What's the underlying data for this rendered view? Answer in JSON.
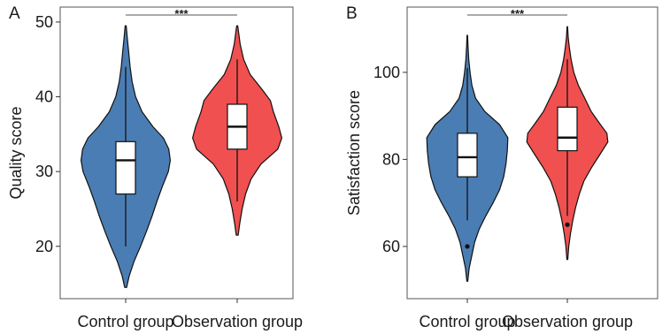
{
  "chart_data": [
    {
      "panel_label": "A",
      "type": "violin",
      "ylabel": "Quality score",
      "xlabel": "",
      "ylim": [
        13,
        52
      ],
      "yticks": [
        20,
        30,
        40,
        50
      ],
      "grid": false,
      "significance": "***",
      "categories": [
        "Control group",
        "Observation group"
      ],
      "groups": [
        {
          "name": "Control group",
          "color": "#4a7db3",
          "box": {
            "whisker_low": 20,
            "q1": 27,
            "median": 31.5,
            "q3": 34,
            "whisker_high": 44
          },
          "outliers": [],
          "density": [
            [
              14.5,
              0.02
            ],
            [
              16,
              0.07
            ],
            [
              18,
              0.17
            ],
            [
              20,
              0.3
            ],
            [
              22,
              0.42
            ],
            [
              24,
              0.53
            ],
            [
              26,
              0.63
            ],
            [
              28,
              0.74
            ],
            [
              30,
              0.86
            ],
            [
              31.5,
              0.9
            ],
            [
              33,
              0.87
            ],
            [
              34.5,
              0.76
            ],
            [
              36,
              0.55
            ],
            [
              38,
              0.33
            ],
            [
              40,
              0.2
            ],
            [
              42,
              0.13
            ],
            [
              44,
              0.09
            ],
            [
              46,
              0.06
            ],
            [
              48,
              0.03
            ],
            [
              49.5,
              0.01
            ]
          ]
        },
        {
          "name": "Observation group",
          "color": "#f0504f",
          "box": {
            "whisker_low": 26,
            "q1": 33,
            "median": 36,
            "q3": 39,
            "whisker_high": 45
          },
          "outliers": [],
          "density": [
            [
              21.5,
              0.02
            ],
            [
              23,
              0.05
            ],
            [
              25,
              0.1
            ],
            [
              27,
              0.17
            ],
            [
              29,
              0.28
            ],
            [
              31,
              0.48
            ],
            [
              33,
              0.82
            ],
            [
              34.5,
              0.9
            ],
            [
              36,
              0.84
            ],
            [
              38,
              0.73
            ],
            [
              39.5,
              0.67
            ],
            [
              41,
              0.5
            ],
            [
              43,
              0.26
            ],
            [
              45,
              0.13
            ],
            [
              47,
              0.06
            ],
            [
              48.5,
              0.03
            ],
            [
              49.5,
              0.01
            ]
          ]
        }
      ]
    },
    {
      "panel_label": "B",
      "type": "violin",
      "ylabel": "Satisfaction score",
      "xlabel": "",
      "ylim": [
        48,
        115
      ],
      "yticks": [
        60,
        80,
        100
      ],
      "grid": false,
      "significance": "***",
      "categories": [
        "Control group",
        "Observation group"
      ],
      "groups": [
        {
          "name": "Control group",
          "color": "#4a7db3",
          "box": {
            "whisker_low": 66,
            "q1": 76,
            "median": 80.5,
            "q3": 86,
            "whisker_high": 101
          },
          "outliers": [
            60
          ],
          "density": [
            [
              52,
              0.01
            ],
            [
              55,
              0.04
            ],
            [
              58,
              0.1
            ],
            [
              61,
              0.16
            ],
            [
              64,
              0.26
            ],
            [
              67,
              0.4
            ],
            [
              70,
              0.56
            ],
            [
              73,
              0.7
            ],
            [
              76,
              0.79
            ],
            [
              79,
              0.84
            ],
            [
              82,
              0.87
            ],
            [
              85,
              0.88
            ],
            [
              88,
              0.7
            ],
            [
              91,
              0.38
            ],
            [
              94,
              0.18
            ],
            [
              97,
              0.1
            ],
            [
              100,
              0.06
            ],
            [
              103,
              0.03
            ],
            [
              106,
              0.015
            ],
            [
              108.5,
              0.005
            ]
          ]
        },
        {
          "name": "Observation group",
          "color": "#f0504f",
          "box": {
            "whisker_low": 67,
            "q1": 82,
            "median": 85,
            "q3": 92,
            "whisker_high": 103
          },
          "outliers": [
            65
          ],
          "density": [
            [
              57,
              0.01
            ],
            [
              60,
              0.03
            ],
            [
              63,
              0.07
            ],
            [
              66,
              0.12
            ],
            [
              69,
              0.18
            ],
            [
              72,
              0.26
            ],
            [
              75,
              0.36
            ],
            [
              78,
              0.52
            ],
            [
              81,
              0.7
            ],
            [
              84,
              0.88
            ],
            [
              86,
              0.86
            ],
            [
              88,
              0.72
            ],
            [
              91,
              0.52
            ],
            [
              94,
              0.38
            ],
            [
              97,
              0.24
            ],
            [
              100,
              0.14
            ],
            [
              103,
              0.08
            ],
            [
              106,
              0.04
            ],
            [
              108,
              0.02
            ],
            [
              110.5,
              0.005
            ]
          ]
        }
      ]
    }
  ]
}
